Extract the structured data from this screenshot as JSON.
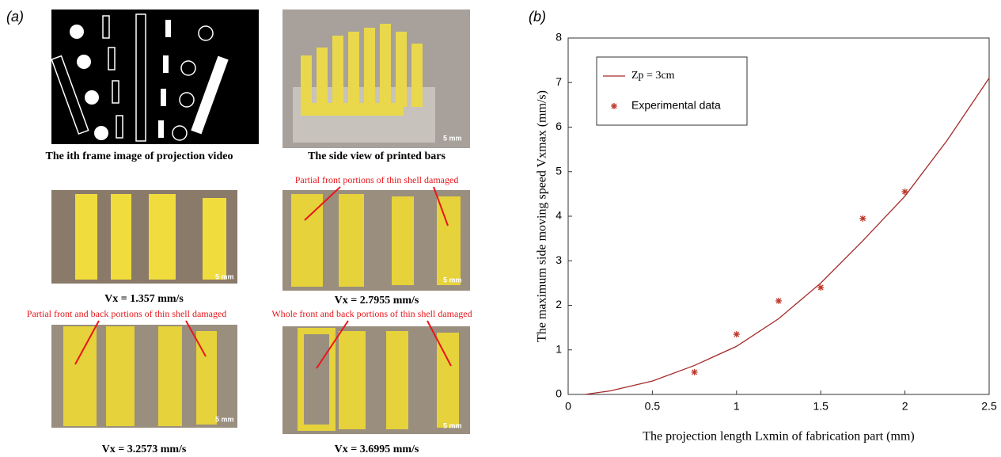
{
  "panel_a": {
    "label": "(a)",
    "captions": [
      "The ith frame image of projection video",
      "The side view of printed bars"
    ],
    "speeds": [
      "Vx = 1.357 mm/s",
      "Vx = 2.7955 mm/s",
      "Vx = 3.2573 mm/s",
      "Vx = 3.6995 mm/s"
    ],
    "annotations": [
      "Partial front portions of thin shell damaged",
      "Partial front and back portions of thin shell damaged",
      "Whole front and back portions of thin shell damaged"
    ],
    "scale_bars": [
      "5 mm",
      "5 mm",
      "5 mm",
      "5 mm",
      "5 mm"
    ]
  },
  "chart_data": {
    "type": "line",
    "panel_label": "(b)",
    "x_label": "The projection length Lxmin of fabrication part (mm)",
    "y_label": "The maximum side moving speed Vxmax (mm/s)",
    "xlim": [
      0,
      2.5
    ],
    "xticks": [
      0,
      0.5,
      1,
      1.5,
      2,
      2.5
    ],
    "ylim": [
      0,
      8
    ],
    "yticks": [
      0,
      1,
      2,
      3,
      4,
      5,
      6,
      7,
      8
    ],
    "legend": "upper left",
    "series": [
      {
        "name": "Zp = 3cm",
        "type": "line",
        "color": "#a52a2a",
        "x": [
          0.1,
          0.25,
          0.5,
          0.75,
          1,
          1.25,
          1.5,
          1.75,
          2,
          2.25,
          2.5
        ],
        "values": [
          0,
          0.08,
          0.3,
          0.65,
          1.08,
          1.7,
          2.5,
          3.45,
          4.45,
          5.7,
          7.1
        ]
      },
      {
        "name": "Experimental data",
        "type": "scatter",
        "color": "#c0392b",
        "x": [
          0.75,
          1,
          1.25,
          1.5,
          1.75,
          2
        ],
        "values": [
          0.5,
          1.35,
          2.1,
          2.4,
          3.95,
          4.55
        ]
      }
    ]
  }
}
